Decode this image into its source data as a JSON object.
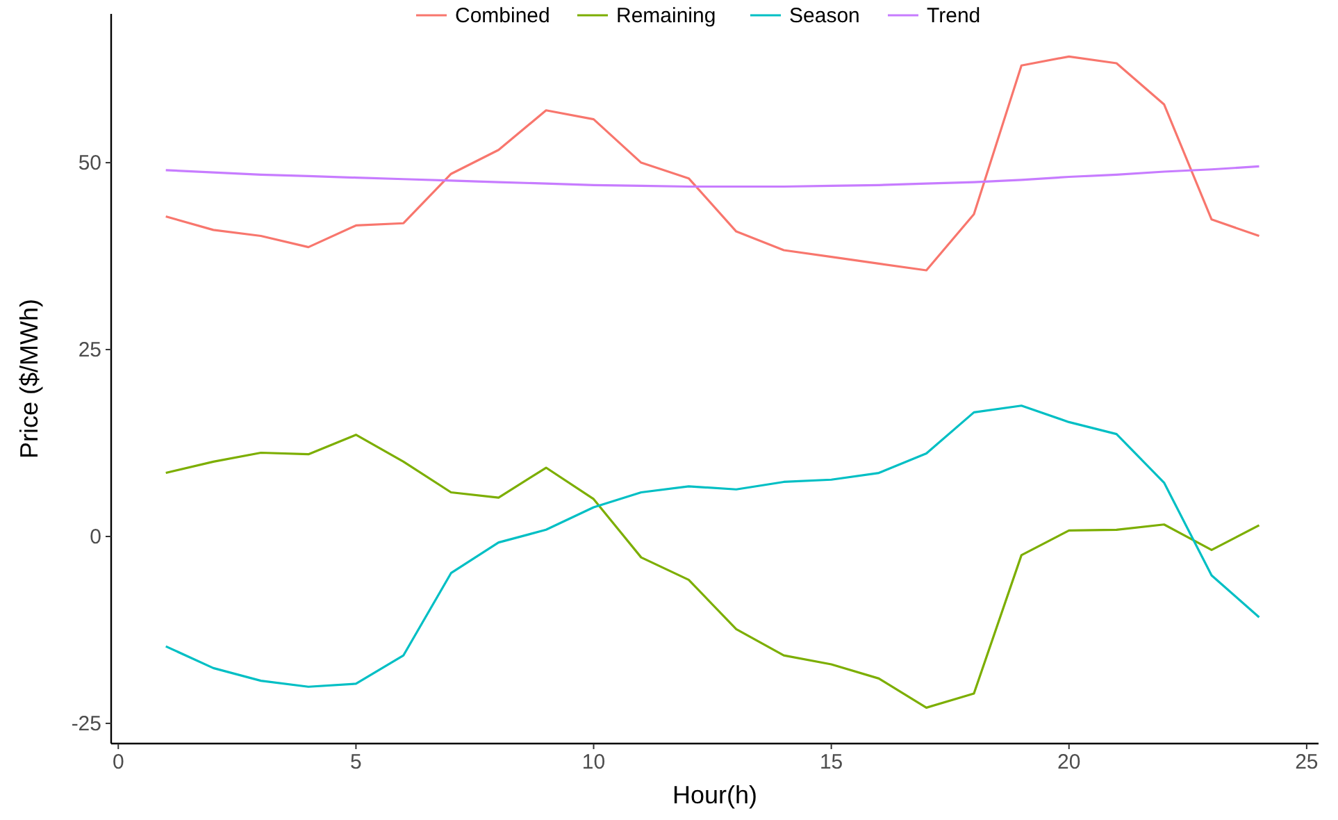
{
  "chart_data": {
    "type": "line",
    "xlabel": "Hour(h)",
    "ylabel": "Price ($/MWh)",
    "x": [
      1,
      2,
      3,
      4,
      5,
      6,
      7,
      8,
      9,
      10,
      11,
      12,
      13,
      14,
      15,
      16,
      17,
      18,
      19,
      20,
      21,
      22,
      23,
      24
    ],
    "series": [
      {
        "name": "Combined",
        "color": "#f8766d",
        "values": [
          42.8,
          41,
          40.2,
          38.7,
          41.6,
          41.9,
          48.5,
          51.7,
          57,
          55.8,
          50,
          47.9,
          40.8,
          38.3,
          37.4,
          36.5,
          35.6,
          43.1,
          63,
          64.2,
          63.3,
          57.8,
          42.4,
          40.2
        ]
      },
      {
        "name": "Remaining",
        "color": "#7cae00",
        "values": [
          8.5,
          10,
          11.2,
          11,
          13.6,
          10,
          5.9,
          5.2,
          9.2,
          5,
          -2.8,
          -5.8,
          -12.4,
          -15.9,
          -17.1,
          -19,
          -22.9,
          -21,
          -2.5,
          0.8,
          0.9,
          1.6,
          -1.8,
          1.5
        ]
      },
      {
        "name": "Season",
        "color": "#00bfc4",
        "values": [
          -14.7,
          -17.6,
          -19.3,
          -20.1,
          -19.7,
          -15.9,
          -4.9,
          -0.8,
          0.9,
          3.9,
          5.9,
          6.7,
          6.3,
          7.3,
          7.6,
          8.5,
          11.1,
          16.6,
          17.5,
          15.3,
          13.7,
          7.2,
          -5.2,
          -10.8
        ]
      },
      {
        "name": "Trend",
        "color": "#c77cff",
        "values": [
          49,
          48.7,
          48.4,
          48.2,
          48,
          47.8,
          47.6,
          47.4,
          47.2,
          47,
          46.9,
          46.8,
          46.8,
          46.8,
          46.9,
          47,
          47.2,
          47.4,
          47.7,
          48.1,
          48.4,
          48.8,
          49.1,
          49.5
        ]
      }
    ],
    "xlim": [
      -0.15,
      25.25
    ],
    "xticks": [
      0,
      5,
      10,
      15,
      20,
      25
    ],
    "ylim": [
      -27.7,
      69.9
    ],
    "yticks": [
      {
        "value": -25,
        "label": "-25"
      },
      0,
      25,
      50
    ],
    "grid": false,
    "legend": "top",
    "marker": "none",
    "line_style": "solid"
  }
}
